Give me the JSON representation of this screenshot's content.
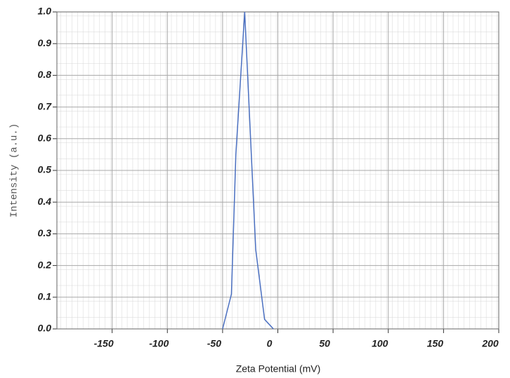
{
  "chart_data": {
    "type": "line",
    "x_label": "Zeta Potential (mV)",
    "y_label": "Intensity (a.u.)",
    "series": [
      {
        "color": "#4a6fc0",
        "x": [
          -50,
          -42,
          -38,
          -30,
          -20,
          -12,
          -4
        ],
        "values": [
          0,
          0.11,
          0.55,
          1.0,
          0.25,
          0.03,
          0
        ]
      }
    ],
    "xlim": [
      -200,
      200
    ],
    "xticks": [
      -150,
      -100,
      -50,
      0,
      50,
      100,
      150,
      200
    ],
    "ylim": [
      0,
      1
    ],
    "yticks": [
      {
        "value": 0,
        "label": "0.0"
      },
      0.1,
      0.2,
      0.3,
      0.4,
      0.5,
      0.6,
      0.7,
      0.8,
      0.9,
      {
        "value": 1,
        "label": "1.0"
      }
    ],
    "grid": true
  }
}
